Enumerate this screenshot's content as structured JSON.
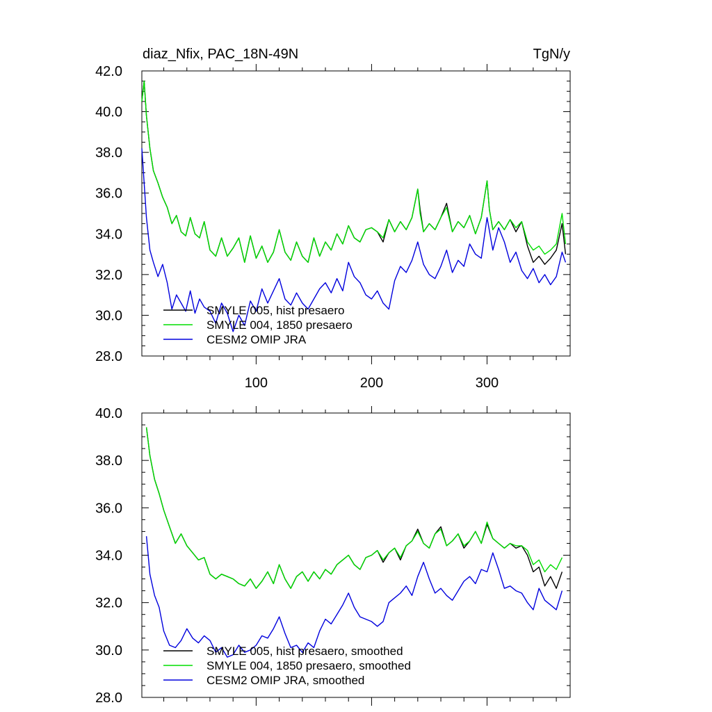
{
  "header": {
    "title_left": "diaz_Nfix, PAC_18N-49N",
    "title_right": "TgN/y"
  },
  "colors": {
    "smyle005": "#000000",
    "smyle004": "#00dd00",
    "omip": "#0000dd"
  },
  "chart_data": [
    {
      "type": "line",
      "title": "",
      "xlim": [
        1,
        372
      ],
      "ylim": [
        28,
        42
      ],
      "xticks": [
        100,
        200,
        300
      ],
      "xtick_labels": [
        "100",
        "200",
        "300"
      ],
      "yticks": [
        28,
        30,
        32,
        34,
        36,
        38,
        40,
        42
      ],
      "ytick_labels": [
        "28.0",
        "30.0",
        "32.0",
        "34.0",
        "36.0",
        "38.0",
        "40.0",
        "42.0"
      ],
      "legend_position": "lower-left",
      "series": [
        {
          "name": "SMYLE 005, hist presaero",
          "x": [
            1,
            3,
            5,
            8,
            11,
            15,
            19,
            23,
            27,
            31,
            35,
            39,
            43,
            47,
            51,
            55,
            60,
            65,
            70,
            75,
            80,
            85,
            90,
            95,
            100,
            105,
            110,
            115,
            120,
            125,
            130,
            135,
            140,
            145,
            150,
            155,
            160,
            165,
            170,
            175,
            180,
            185,
            190,
            195,
            200,
            205,
            210,
            215,
            220,
            225,
            230,
            235,
            240,
            242,
            245,
            250,
            255,
            260,
            265,
            270,
            275,
            280,
            285,
            290,
            295,
            300,
            302,
            305,
            310,
            315,
            320,
            325,
            330,
            335,
            340,
            345,
            350,
            355,
            360,
            365,
            368
          ],
          "values": [
            40.5,
            41.5,
            39.8,
            38.2,
            37.1,
            36.5,
            35.8,
            35.3,
            34.5,
            34.9,
            34.1,
            33.9,
            34.8,
            34.0,
            33.8,
            34.6,
            33.2,
            32.9,
            33.8,
            32.9,
            33.3,
            33.8,
            32.6,
            33.9,
            32.8,
            33.4,
            32.6,
            33.1,
            34.2,
            33.1,
            32.7,
            33.6,
            32.9,
            32.6,
            33.8,
            32.9,
            33.6,
            33.2,
            34.0,
            33.5,
            34.4,
            33.8,
            33.6,
            34.2,
            34.3,
            34.1,
            33.6,
            34.7,
            34.1,
            34.6,
            34.2,
            34.8,
            36.2,
            35.2,
            34.1,
            34.5,
            34.2,
            34.8,
            35.5,
            34.1,
            34.6,
            34.3,
            34.9,
            34.0,
            34.8,
            36.6,
            35.2,
            34.2,
            34.6,
            34.2,
            34.7,
            34.1,
            34.6,
            33.4,
            32.6,
            32.9,
            32.5,
            32.8,
            33.2,
            34.5,
            33.0
          ]
        },
        {
          "name": "SMYLE 004, 1850 presaero",
          "x": [
            1,
            3,
            5,
            8,
            11,
            15,
            19,
            23,
            27,
            31,
            35,
            39,
            43,
            47,
            51,
            55,
            60,
            65,
            70,
            75,
            80,
            85,
            90,
            95,
            100,
            105,
            110,
            115,
            120,
            125,
            130,
            135,
            140,
            145,
            150,
            155,
            160,
            165,
            170,
            175,
            180,
            185,
            190,
            195,
            200,
            205,
            210,
            215,
            220,
            225,
            230,
            235,
            240,
            242,
            245,
            250,
            255,
            260,
            265,
            270,
            275,
            280,
            285,
            290,
            295,
            300,
            302,
            305,
            310,
            315,
            320,
            325,
            330,
            335,
            340,
            345,
            350,
            355,
            360,
            365,
            368
          ],
          "values": [
            40.5,
            41.5,
            39.8,
            38.2,
            37.1,
            36.5,
            35.8,
            35.3,
            34.5,
            34.9,
            34.1,
            33.9,
            34.8,
            34.0,
            33.8,
            34.6,
            33.2,
            32.9,
            33.8,
            32.9,
            33.3,
            33.8,
            32.6,
            33.9,
            32.8,
            33.4,
            32.6,
            33.1,
            34.2,
            33.1,
            32.7,
            33.6,
            32.9,
            32.6,
            33.8,
            32.9,
            33.6,
            33.2,
            34.0,
            33.5,
            34.4,
            33.8,
            33.6,
            34.2,
            34.3,
            34.1,
            33.8,
            34.7,
            34.1,
            34.6,
            34.2,
            34.8,
            36.2,
            35.0,
            34.1,
            34.5,
            34.2,
            34.8,
            35.3,
            34.1,
            34.6,
            34.3,
            34.9,
            34.0,
            34.8,
            36.6,
            35.2,
            34.2,
            34.6,
            34.2,
            34.7,
            34.3,
            34.6,
            33.6,
            33.2,
            33.4,
            33.0,
            33.2,
            33.5,
            35.0,
            33.5
          ]
        },
        {
          "name": "CESM2 OMIP JRA",
          "x": [
            1,
            3,
            5,
            8,
            11,
            15,
            19,
            23,
            27,
            31,
            35,
            39,
            43,
            47,
            51,
            55,
            60,
            65,
            70,
            75,
            80,
            85,
            90,
            95,
            100,
            105,
            110,
            115,
            120,
            125,
            130,
            135,
            140,
            145,
            150,
            155,
            160,
            165,
            170,
            175,
            180,
            185,
            190,
            195,
            200,
            205,
            210,
            215,
            220,
            225,
            230,
            235,
            240,
            245,
            250,
            255,
            260,
            265,
            270,
            275,
            280,
            285,
            290,
            295,
            300,
            305,
            310,
            315,
            320,
            325,
            330,
            335,
            340,
            345,
            350,
            355,
            360,
            365,
            368
          ],
          "values": [
            38.2,
            36.5,
            34.8,
            33.2,
            32.6,
            31.9,
            32.5,
            31.6,
            30.3,
            31.0,
            30.6,
            30.2,
            31.2,
            30.1,
            30.8,
            30.4,
            30.2,
            29.6,
            30.6,
            30.1,
            29.2,
            30.0,
            29.5,
            30.7,
            30.2,
            31.3,
            30.6,
            31.2,
            31.8,
            30.8,
            30.5,
            31.1,
            30.6,
            30.3,
            30.8,
            31.3,
            31.6,
            31.1,
            31.8,
            31.2,
            32.6,
            31.9,
            31.6,
            31.0,
            30.8,
            31.2,
            30.6,
            30.3,
            31.7,
            32.4,
            32.1,
            32.7,
            33.6,
            32.5,
            32.0,
            31.8,
            32.4,
            33.2,
            32.1,
            32.7,
            32.4,
            33.5,
            33.0,
            32.8,
            34.8,
            33.2,
            34.3,
            33.6,
            32.6,
            33.1,
            32.2,
            31.8,
            32.3,
            31.6,
            32.0,
            31.5,
            31.9,
            33.1,
            32.6
          ]
        }
      ]
    },
    {
      "type": "line",
      "title": "",
      "xlim": [
        1,
        372
      ],
      "ylim": [
        28,
        40
      ],
      "xticks": [
        100,
        200,
        300
      ],
      "yticks": [
        28,
        30,
        32,
        34,
        36,
        38,
        40
      ],
      "ytick_labels": [
        "28.0",
        "30.0",
        "32.0",
        "34.0",
        "36.0",
        "38.0",
        "40.0"
      ],
      "legend_position": "lower-left",
      "series": [
        {
          "name": "SMYLE 005, hist presaero, smoothed",
          "x": [
            5,
            8,
            12,
            16,
            20,
            25,
            30,
            35,
            40,
            45,
            50,
            55,
            60,
            65,
            70,
            75,
            80,
            85,
            90,
            95,
            100,
            105,
            110,
            115,
            120,
            125,
            130,
            135,
            140,
            145,
            150,
            155,
            160,
            165,
            170,
            175,
            180,
            185,
            190,
            195,
            200,
            205,
            210,
            215,
            220,
            225,
            230,
            235,
            240,
            245,
            250,
            255,
            260,
            265,
            270,
            275,
            280,
            285,
            290,
            295,
            300,
            305,
            310,
            315,
            320,
            325,
            330,
            335,
            340,
            345,
            350,
            355,
            360,
            365
          ],
          "values": [
            39.4,
            38.2,
            37.2,
            36.6,
            35.9,
            35.2,
            34.5,
            34.9,
            34.4,
            34.1,
            33.8,
            33.9,
            33.2,
            33.0,
            33.2,
            33.1,
            33.0,
            32.8,
            32.7,
            33.0,
            32.6,
            32.9,
            33.3,
            32.8,
            33.6,
            33.0,
            32.6,
            33.1,
            33.3,
            32.9,
            33.3,
            33.0,
            33.4,
            33.2,
            33.6,
            33.8,
            34.0,
            33.6,
            33.4,
            33.9,
            34.0,
            34.2,
            33.7,
            34.1,
            34.3,
            33.8,
            34.4,
            34.6,
            35.1,
            34.5,
            34.3,
            34.9,
            35.2,
            34.4,
            34.6,
            34.9,
            34.3,
            34.6,
            35.0,
            34.5,
            35.3,
            34.7,
            34.5,
            34.3,
            34.5,
            34.3,
            34.4,
            34.0,
            33.3,
            33.5,
            32.7,
            33.1,
            32.6,
            33.3
          ]
        },
        {
          "name": "SMYLE 004, 1850 presaero, smoothed",
          "x": [
            5,
            8,
            12,
            16,
            20,
            25,
            30,
            35,
            40,
            45,
            50,
            55,
            60,
            65,
            70,
            75,
            80,
            85,
            90,
            95,
            100,
            105,
            110,
            115,
            120,
            125,
            130,
            135,
            140,
            145,
            150,
            155,
            160,
            165,
            170,
            175,
            180,
            185,
            190,
            195,
            200,
            205,
            210,
            215,
            220,
            225,
            230,
            235,
            240,
            245,
            250,
            255,
            260,
            265,
            270,
            275,
            280,
            285,
            290,
            295,
            300,
            305,
            310,
            315,
            320,
            325,
            330,
            335,
            340,
            345,
            350,
            355,
            360,
            365
          ],
          "values": [
            39.4,
            38.2,
            37.2,
            36.6,
            35.9,
            35.2,
            34.5,
            34.9,
            34.4,
            34.1,
            33.8,
            33.9,
            33.2,
            33.0,
            33.2,
            33.1,
            33.0,
            32.8,
            32.7,
            33.0,
            32.6,
            32.9,
            33.3,
            32.8,
            33.6,
            33.0,
            32.6,
            33.1,
            33.3,
            32.9,
            33.3,
            33.0,
            33.4,
            33.2,
            33.6,
            33.8,
            34.0,
            33.6,
            33.4,
            33.9,
            34.0,
            34.2,
            33.8,
            34.1,
            34.3,
            33.9,
            34.4,
            34.6,
            35.0,
            34.5,
            34.3,
            34.9,
            35.1,
            34.4,
            34.6,
            34.9,
            34.4,
            34.6,
            35.0,
            34.5,
            35.4,
            34.7,
            34.5,
            34.3,
            34.5,
            34.4,
            34.4,
            34.2,
            33.6,
            33.8,
            33.3,
            33.6,
            33.4,
            33.9
          ]
        },
        {
          "name": "CESM2 OMIP JRA, smoothed",
          "x": [
            5,
            8,
            12,
            16,
            20,
            25,
            30,
            35,
            40,
            45,
            50,
            55,
            60,
            65,
            70,
            75,
            80,
            85,
            90,
            95,
            100,
            105,
            110,
            115,
            120,
            125,
            130,
            135,
            140,
            145,
            150,
            155,
            160,
            165,
            170,
            175,
            180,
            185,
            190,
            195,
            200,
            205,
            210,
            215,
            220,
            225,
            230,
            235,
            240,
            245,
            250,
            255,
            260,
            265,
            270,
            275,
            280,
            285,
            290,
            295,
            300,
            305,
            310,
            315,
            320,
            325,
            330,
            335,
            340,
            345,
            350,
            355,
            360,
            365
          ],
          "values": [
            34.8,
            33.2,
            32.3,
            31.8,
            30.8,
            30.2,
            30.1,
            30.4,
            30.9,
            30.5,
            30.3,
            30.6,
            30.4,
            29.9,
            30.1,
            29.7,
            29.8,
            30.2,
            29.9,
            30.0,
            30.2,
            30.6,
            30.5,
            30.9,
            31.4,
            30.7,
            30.1,
            30.2,
            29.9,
            30.3,
            30.1,
            30.8,
            31.3,
            31.1,
            31.5,
            31.9,
            32.4,
            31.8,
            31.4,
            31.3,
            31.2,
            31.0,
            31.2,
            32.0,
            32.2,
            32.4,
            32.7,
            32.3,
            33.1,
            33.7,
            33.0,
            32.4,
            32.6,
            32.3,
            32.1,
            32.5,
            32.9,
            33.1,
            32.8,
            33.4,
            33.3,
            34.1,
            33.4,
            32.6,
            32.7,
            32.5,
            32.4,
            32.0,
            31.7,
            32.6,
            32.1,
            31.9,
            31.7,
            32.5
          ]
        }
      ]
    }
  ]
}
